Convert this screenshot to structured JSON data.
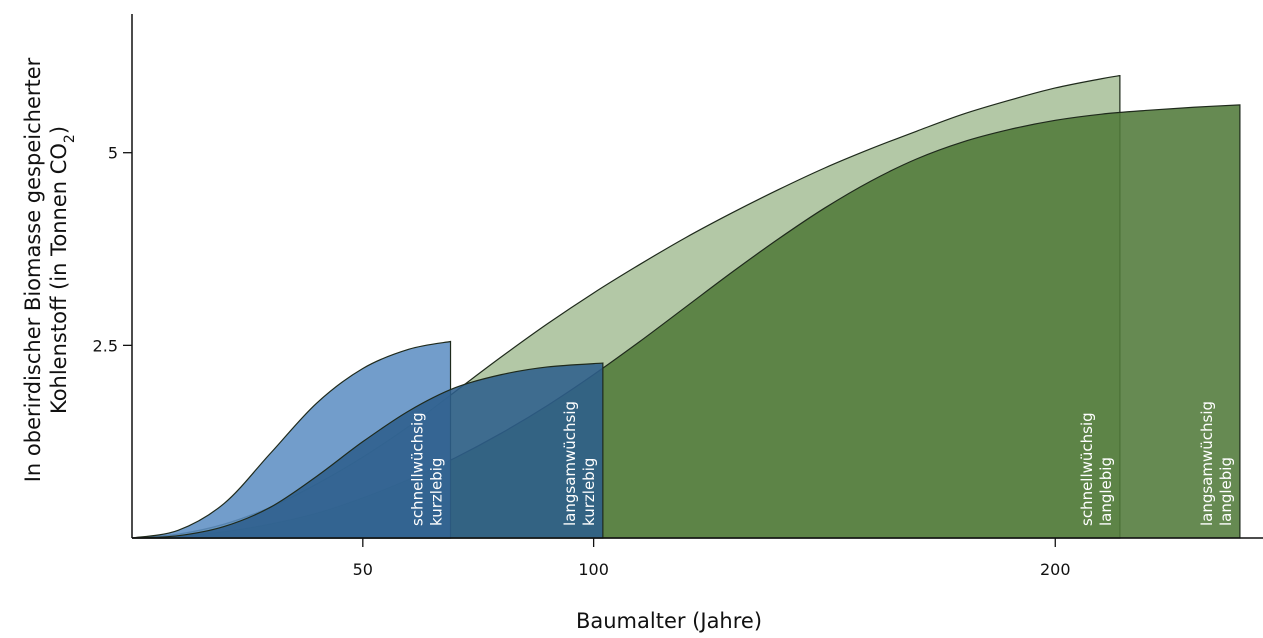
{
  "chart_data": {
    "type": "area",
    "title": "",
    "xlabel": "Baumalter (Jahre)",
    "ylabel_line1": "In oberirdischer Biomasse gespeicherter",
    "ylabel_line2_prefix": "Kohlenstoff (in Tonnen CO",
    "ylabel_line2_sub": "2",
    "ylabel_line2_suffix": ")",
    "xlim": [
      0,
      245
    ],
    "ylim": [
      0,
      6.8
    ],
    "x_ticks": [
      {
        "value": 50,
        "label": "50"
      },
      {
        "value": 100,
        "label": "100"
      },
      {
        "value": 200,
        "label": "200"
      }
    ],
    "y_ticks": [
      {
        "value": 2.5,
        "label": "2.5"
      },
      {
        "value": 5,
        "label": "5"
      }
    ],
    "grid": false,
    "legend": "none",
    "series": [
      {
        "key": "schnell-lang",
        "label_line1": "schnellwüchsig",
        "label_line2": "langlebig",
        "color": "#a9c09a",
        "x": [
          0,
          10,
          20,
          30,
          40,
          50,
          60,
          70,
          80,
          90,
          100,
          110,
          120,
          130,
          140,
          150,
          160,
          170,
          180,
          190,
          200,
          210,
          214
        ],
        "values": [
          0,
          0.05,
          0.18,
          0.4,
          0.7,
          1.05,
          1.45,
          1.9,
          2.35,
          2.78,
          3.18,
          3.55,
          3.9,
          4.22,
          4.52,
          4.8,
          5.05,
          5.28,
          5.5,
          5.68,
          5.84,
          5.96,
          6.0
        ]
      },
      {
        "key": "langsam-lang",
        "label_line1": "langsamwüchsig",
        "label_line2": "langlebig",
        "color": "#517a3a",
        "x": [
          0,
          10,
          20,
          30,
          40,
          50,
          60,
          70,
          80,
          90,
          100,
          110,
          120,
          130,
          140,
          150,
          160,
          170,
          180,
          190,
          200,
          210,
          220,
          230,
          240
        ],
        "values": [
          0,
          0.02,
          0.08,
          0.18,
          0.32,
          0.52,
          0.76,
          1.04,
          1.36,
          1.72,
          2.12,
          2.55,
          3.0,
          3.45,
          3.88,
          4.28,
          4.63,
          4.92,
          5.14,
          5.3,
          5.42,
          5.5,
          5.55,
          5.59,
          5.62
        ]
      },
      {
        "key": "schnell-kurz",
        "label_line1": "schnellwüchsig",
        "label_line2": "kurzlebig",
        "color": "#5f8fc4",
        "x": [
          0,
          10,
          20,
          30,
          40,
          50,
          60,
          69
        ],
        "values": [
          0,
          0.1,
          0.45,
          1.1,
          1.75,
          2.2,
          2.45,
          2.55
        ]
      },
      {
        "key": "langsam-kurz",
        "label_line1": "langsamwüchsig",
        "label_line2": "kurzlebig",
        "color": "#2e5f8c",
        "x": [
          0,
          10,
          20,
          30,
          40,
          50,
          60,
          70,
          80,
          90,
          102
        ],
        "values": [
          0,
          0.03,
          0.15,
          0.4,
          0.8,
          1.25,
          1.65,
          1.95,
          2.12,
          2.22,
          2.27
        ]
      }
    ]
  }
}
